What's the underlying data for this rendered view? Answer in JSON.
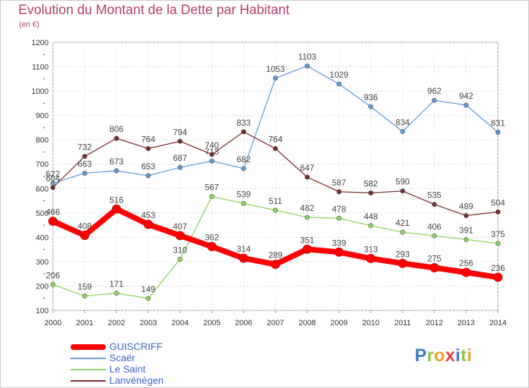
{
  "header": {
    "title": "Evolution du Montant de la Dette par Habitant",
    "subtitle": "(en €)"
  },
  "logo": {
    "text": "Proxiti",
    "letters": [
      {
        "ch": "P",
        "color": "#3a78c8"
      },
      {
        "ch": "r",
        "color": "#8cc83c"
      },
      {
        "ch": "o",
        "color": "#f0a028"
      },
      {
        "ch": "x",
        "color": "#e04040"
      },
      {
        "ch": "i",
        "color": "#3a78c8"
      },
      {
        "ch": "t",
        "color": "#8cc83c"
      },
      {
        "ch": "i",
        "color": "#f0a028"
      }
    ]
  },
  "chart_data": {
    "type": "line",
    "title": "Evolution du Montant de la Dette par Habitant",
    "ylabel": "(en €)",
    "x": [
      "2000",
      "2001",
      "2002",
      "2003",
      "2004",
      "2005",
      "2006",
      "2007",
      "2008",
      "2009",
      "2010",
      "2011",
      "2012",
      "2013",
      "2014"
    ],
    "ylim": [
      100,
      1200
    ],
    "yticks": [
      100,
      200,
      300,
      400,
      500,
      600,
      700,
      800,
      900,
      1000,
      1100,
      1200
    ],
    "grid": true,
    "legend_position": "bottom-left",
    "series": [
      {
        "name": "GUISCRIFF",
        "color": "#ff0000",
        "values": [
          466,
          408,
          516,
          453,
          407,
          362,
          314,
          289,
          351,
          339,
          313,
          293,
          275,
          256,
          236
        ]
      },
      {
        "name": "Scaër",
        "color": "#5f9bd6",
        "values": [
          622,
          663,
          673,
          653,
          687,
          713,
          682,
          1053,
          1103,
          1029,
          936,
          834,
          962,
          942,
          831
        ]
      },
      {
        "name": "Le Saint",
        "color": "#8cd55a",
        "values": [
          206,
          159,
          171,
          149,
          310,
          567,
          539,
          511,
          482,
          478,
          448,
          421,
          406,
          391,
          375
        ]
      },
      {
        "name": "Lanvénégen",
        "color": "#7a2b2b",
        "values": [
          604,
          732,
          806,
          764,
          794,
          740,
          833,
          764,
          647,
          587,
          582,
          590,
          535,
          489,
          504
        ]
      }
    ]
  }
}
